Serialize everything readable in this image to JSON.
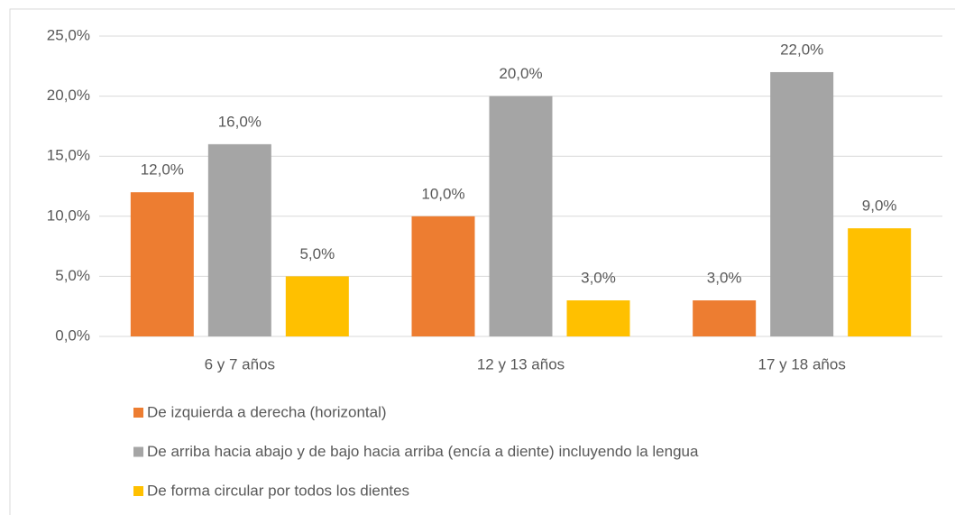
{
  "chart_data": {
    "type": "bar",
    "categories": [
      "6 y 7 años",
      "12 y 13 años",
      "17 y 18 años"
    ],
    "series": [
      {
        "name": "De izquierda a derecha (horizontal)",
        "color": "#ed7d31",
        "values": [
          12,
          10,
          3
        ],
        "value_labels": [
          "12,0%",
          "10,0%",
          "3,0%"
        ]
      },
      {
        "name": "De arriba hacia abajo y de bajo hacia arriba (encía a diente) incluyendo la lengua",
        "color": "#a5a5a5",
        "values": [
          16,
          20,
          22
        ],
        "value_labels": [
          "16,0%",
          "20,0%",
          "22,0%"
        ]
      },
      {
        "name": "De forma circular por todos los dientes",
        "color": "#ffc000",
        "values": [
          5,
          3,
          9
        ],
        "value_labels": [
          "5,0%",
          "3,0%",
          "9,0%"
        ]
      }
    ],
    "ylim": [
      0,
      25
    ],
    "yticks": [
      {
        "value": 0,
        "label": "0,0%"
      },
      {
        "value": 5,
        "label": "5,0%"
      },
      {
        "value": 10,
        "label": "10,0%"
      },
      {
        "value": 15,
        "label": "15,0%"
      },
      {
        "value": 20,
        "label": "20,0%"
      },
      {
        "value": 25,
        "label": "25,0%"
      }
    ],
    "grid": true,
    "legend": "bottom"
  }
}
